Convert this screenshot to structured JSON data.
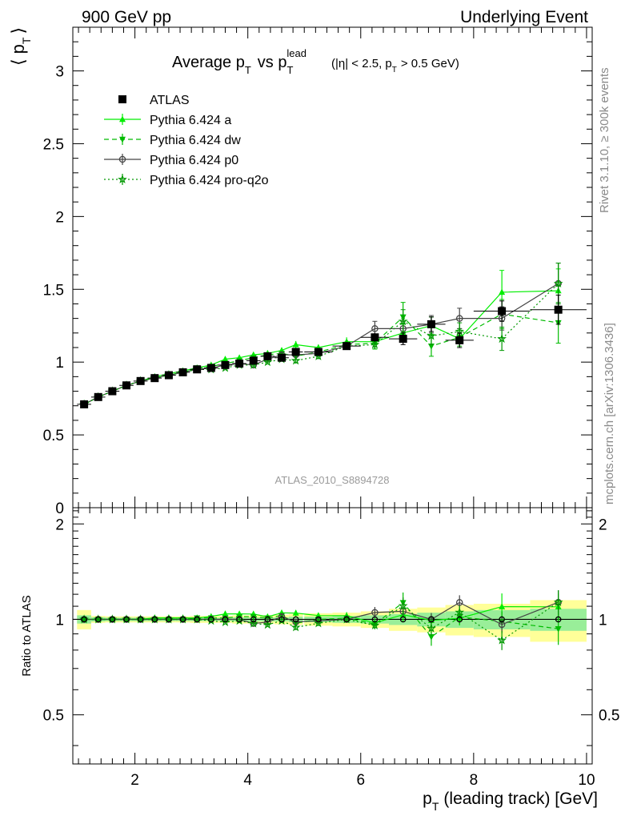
{
  "header": {
    "left": "900 GeV pp",
    "right": "Underlying Event"
  },
  "side": {
    "rivet": "Rivet 3.1.10, ≥ 300k events",
    "mcplots": "mcplots.cern.ch [arXiv:1306.3436]"
  },
  "chart_data": {
    "type": "line",
    "title": {
      "main": "Average p",
      "main_sub": "T",
      "vs": "vs p",
      "vs_sub": "T",
      "vs_sup": "lead",
      "cond_a": "(|η| < 2.5, p",
      "cond_sub": "T",
      "cond_b": "> 0.5 GeV)"
    },
    "ylabel": {
      "main": "⟨ p",
      "sub": "T",
      "close": "⟩"
    },
    "xlabel": {
      "main": "p",
      "sub": "T",
      "rest": "(leading track) [GeV]"
    },
    "ratio_ylabel": "Ratio to ATLAS",
    "analysis_id": "ATLAS_2010_S8894728",
    "xlim": [
      0.9,
      10.1
    ],
    "ylim": [
      0,
      3.3
    ],
    "ratio_ylim": [
      0.35,
      2.25
    ],
    "x_ticks": [
      "2",
      "4",
      "6",
      "8",
      "10"
    ],
    "y_ticks": [
      "0",
      "0.5",
      "1",
      "1.5",
      "2",
      "2.5",
      "3"
    ],
    "ratio_ticks": [
      "0.5",
      "1",
      "2"
    ],
    "x": [
      1.1,
      1.35,
      1.6,
      1.85,
      2.1,
      2.35,
      2.6,
      2.85,
      3.1,
      3.35,
      3.6,
      3.85,
      4.1,
      4.35,
      4.6,
      4.85,
      5.25,
      5.75,
      6.25,
      6.75,
      7.25,
      7.75,
      8.5,
      9.5
    ],
    "x_err": [
      0.125,
      0.125,
      0.125,
      0.125,
      0.125,
      0.125,
      0.125,
      0.125,
      0.125,
      0.125,
      0.125,
      0.125,
      0.125,
      0.125,
      0.125,
      0.125,
      0.25,
      0.25,
      0.25,
      0.25,
      0.25,
      0.25,
      0.5,
      0.5
    ],
    "band_stat": [
      0.03,
      0.015,
      0.012,
      0.012,
      0.012,
      0.012,
      0.012,
      0.012,
      0.012,
      0.012,
      0.012,
      0.015,
      0.015,
      0.015,
      0.015,
      0.02,
      0.02,
      0.025,
      0.03,
      0.04,
      0.05,
      0.06,
      0.07,
      0.08
    ],
    "band_total": [
      0.07,
      0.025,
      0.022,
      0.022,
      0.022,
      0.022,
      0.022,
      0.022,
      0.025,
      0.025,
      0.025,
      0.03,
      0.03,
      0.03,
      0.035,
      0.04,
      0.045,
      0.05,
      0.06,
      0.08,
      0.09,
      0.11,
      0.12,
      0.15
    ],
    "series": [
      {
        "name": "ATLAS",
        "color": "#000000",
        "marker": "square",
        "line": "none",
        "values": [
          0.71,
          0.76,
          0.8,
          0.84,
          0.87,
          0.89,
          0.91,
          0.93,
          0.95,
          0.96,
          0.98,
          0.99,
          1.01,
          1.04,
          1.03,
          1.07,
          1.07,
          1.11,
          1.17,
          1.16,
          1.26,
          1.15,
          1.35,
          1.36
        ],
        "err": [
          0.01,
          0.01,
          0.01,
          0.01,
          0.01,
          0.01,
          0.01,
          0.01,
          0.01,
          0.01,
          0.01,
          0.01,
          0.01,
          0.015,
          0.015,
          0.02,
          0.02,
          0.02,
          0.03,
          0.04,
          0.05,
          0.05,
          0.07,
          0.1
        ]
      },
      {
        "name": "Pythia 6.424 a",
        "color": "#00ee00",
        "marker": "triangle-up",
        "line": "solid",
        "values": [
          0.71,
          0.76,
          0.8,
          0.84,
          0.87,
          0.9,
          0.92,
          0.94,
          0.96,
          0.98,
          1.02,
          1.03,
          1.05,
          1.06,
          1.08,
          1.12,
          1.1,
          1.14,
          1.14,
          1.2,
          1.25,
          1.16,
          1.48,
          1.49
        ],
        "err": [
          0.005,
          0.005,
          0.005,
          0.006,
          0.007,
          0.008,
          0.008,
          0.01,
          0.01,
          0.012,
          0.012,
          0.015,
          0.015,
          0.02,
          0.02,
          0.025,
          0.02,
          0.03,
          0.05,
          0.06,
          0.06,
          0.06,
          0.15,
          0.15
        ]
      },
      {
        "name": "Pythia 6.424 dw",
        "color": "#00bb00",
        "marker": "triangle-down",
        "line": "dashed",
        "values": [
          0.71,
          0.76,
          0.8,
          0.84,
          0.87,
          0.89,
          0.91,
          0.93,
          0.96,
          0.97,
          0.99,
          1.01,
          1.03,
          1.05,
          1.06,
          1.04,
          1.07,
          1.12,
          1.13,
          1.31,
          1.11,
          1.17,
          1.33,
          1.27
        ],
        "err": [
          0.005,
          0.005,
          0.005,
          0.006,
          0.007,
          0.008,
          0.008,
          0.01,
          0.01,
          0.012,
          0.012,
          0.015,
          0.015,
          0.02,
          0.02,
          0.02,
          0.02,
          0.03,
          0.04,
          0.1,
          0.07,
          0.06,
          0.1,
          0.14
        ]
      },
      {
        "name": "Pythia 6.424 p0",
        "color": "#444444",
        "marker": "circle-open",
        "line": "solid",
        "values": [
          0.71,
          0.76,
          0.8,
          0.84,
          0.87,
          0.89,
          0.91,
          0.93,
          0.95,
          0.96,
          0.98,
          0.99,
          0.98,
          1.02,
          1.05,
          1.05,
          1.06,
          1.11,
          1.23,
          1.23,
          1.26,
          1.3,
          1.3,
          1.54
        ],
        "err": [
          0.005,
          0.005,
          0.005,
          0.006,
          0.007,
          0.008,
          0.008,
          0.01,
          0.01,
          0.01,
          0.012,
          0.012,
          0.012,
          0.015,
          0.02,
          0.02,
          0.02,
          0.025,
          0.05,
          0.05,
          0.06,
          0.07,
          0.08,
          0.14
        ]
      },
      {
        "name": "Pythia 6.424 pro-q2o",
        "color": "#009900",
        "marker": "star-open",
        "line": "dotted",
        "values": [
          0.71,
          0.76,
          0.8,
          0.84,
          0.87,
          0.89,
          0.91,
          0.93,
          0.95,
          0.95,
          0.96,
          0.98,
          0.98,
          1.0,
          1.02,
          1.01,
          1.04,
          1.11,
          1.12,
          1.28,
          1.18,
          1.21,
          1.16,
          1.54
        ],
        "err": [
          0.005,
          0.005,
          0.005,
          0.006,
          0.007,
          0.008,
          0.008,
          0.01,
          0.01,
          0.01,
          0.012,
          0.012,
          0.012,
          0.015,
          0.015,
          0.02,
          0.02,
          0.025,
          0.03,
          0.08,
          0.06,
          0.06,
          0.08,
          0.14
        ]
      }
    ]
  }
}
